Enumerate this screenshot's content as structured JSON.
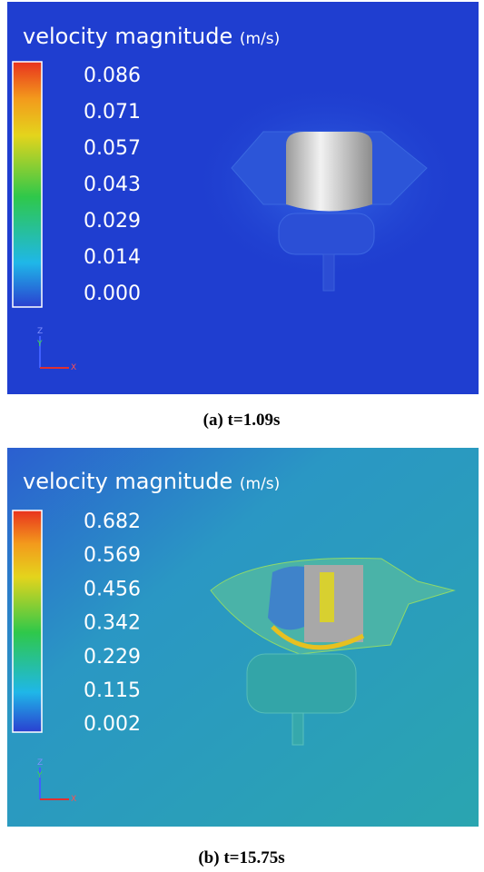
{
  "panels": [
    {
      "title": "velocity magnitude",
      "unit": "(m/s)",
      "legend": [
        "0.086",
        "0.071",
        "0.057",
        "0.043",
        "0.029",
        "0.014",
        "0.000"
      ],
      "axes": [
        "Z",
        "Y",
        "X"
      ],
      "caption": "(a) t=1.09s"
    },
    {
      "title": "velocity magnitude",
      "unit": "(m/s)",
      "legend": [
        "0.682",
        "0.569",
        "0.456",
        "0.342",
        "0.229",
        "0.115",
        "0.002"
      ],
      "axes": [
        "Z",
        "Y",
        "X"
      ],
      "caption": "(b) t=15.75s"
    }
  ]
}
